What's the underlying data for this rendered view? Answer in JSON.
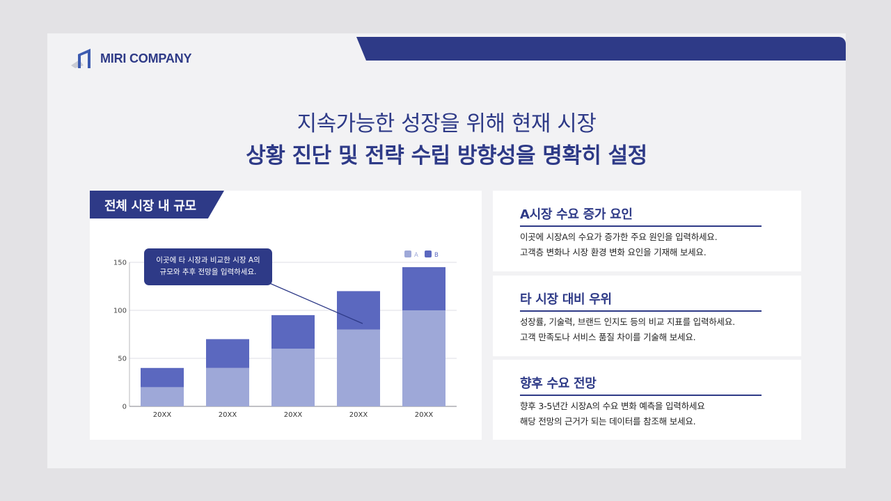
{
  "brand": {
    "name": "MIRI COMPANY",
    "logo_icon": "building-frame-icon",
    "accent_color": "#2e3a87"
  },
  "heading": {
    "line1": "지속가능한 성장을 위해 현재 시장",
    "line2": "상황 진단 및 전략 수립 방향성을 명확히 설정"
  },
  "chart_panel": {
    "tab_label": "전체 시장 내 규모",
    "callout": {
      "line1": "이곳에 타 시장과 비교한 시장 A의",
      "line2": "규모와 추후 전망을 입력하세요."
    }
  },
  "chart_data": {
    "type": "bar",
    "stacked": true,
    "title": "전체 시장 내 규모",
    "xlabel": "",
    "ylabel": "",
    "categories": [
      "20XX",
      "20XX",
      "20XX",
      "20XX",
      "20XX"
    ],
    "series": [
      {
        "name": "A",
        "color": "#9ea8d8",
        "values": [
          20,
          40,
          60,
          80,
          100
        ]
      },
      {
        "name": "B",
        "color": "#5b68bf",
        "values": [
          20,
          30,
          35,
          40,
          45
        ]
      }
    ],
    "ylim": [
      0,
      150
    ],
    "yticks": [
      0,
      50,
      100,
      150
    ],
    "grid": true,
    "legend_position": "top-right",
    "annotation": "이곳에 타 시장과 비교한 시장 A의 규모와 추후 전망을 입력하세요."
  },
  "info_panels": [
    {
      "title": "A시장 수요 증가 요인",
      "lines": [
        "이곳에 시장A의 수요가 증가한 주요 원인을 입력하세요.",
        "고객층 변화나 시장 환경 변화 요인을 기재해 보세요."
      ]
    },
    {
      "title": "타 시장 대비 우위",
      "lines": [
        "성장률, 기술력, 브랜드 인지도 등의 비교 지표를 입력하세요.",
        "고객 만족도나 서비스 품질 차이를 기술해 보세요."
      ]
    },
    {
      "title": "향후 수요 전망",
      "lines": [
        "향후 3-5년간 시장A의 수요 변화 예측을 입력하세요",
        "해당 전망의 근거가 되는 데이터를 참조해 보세요."
      ]
    }
  ]
}
